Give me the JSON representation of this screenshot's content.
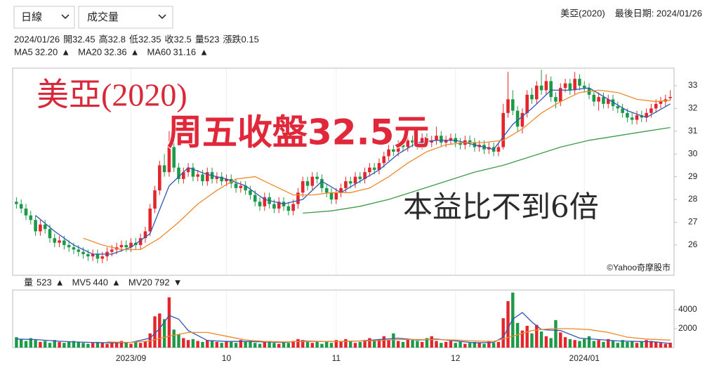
{
  "header": {
    "period": "日線",
    "indicator": "成交量",
    "stock": "美亞(2020)",
    "last_date": "最後日期: 2024/01/26"
  },
  "info": [
    "2024/01/26",
    "開32.45",
    "高32.8",
    "低32.35",
    "收32.5",
    "量523",
    "漲跌0.15"
  ],
  "chart_data": [
    {
      "type": "candlestick",
      "up_color": "#e4262c",
      "down_color": "#1b9a48",
      "open": [
        27.9,
        27.8,
        27.6,
        27.3,
        27.1,
        26.6,
        26.9,
        26.7,
        26.3,
        26.1,
        26.2,
        26.0,
        25.9,
        25.8,
        25.7,
        25.6,
        25.5,
        25.6,
        25.4,
        25.5,
        25.7,
        25.8,
        25.9,
        26.0,
        25.9,
        26.1,
        26.0,
        26.3,
        26.6,
        27.6,
        28.4,
        29.5,
        29.2,
        30.3,
        29.4,
        28.9,
        29.2,
        29.4,
        29.0,
        29.1,
        28.8,
        29.2,
        28.9,
        29.0,
        28.8,
        28.9,
        28.7,
        28.5,
        28.6,
        28.4,
        28.2,
        27.9,
        27.7,
        28.1,
        27.8,
        27.6,
        27.9,
        27.7,
        27.5,
        27.8,
        28.3,
        28.8,
        28.6,
        29.0,
        28.9,
        28.5,
        28.3,
        28.0,
        28.3,
        28.5,
        28.8,
        28.7,
        29.0,
        28.9,
        29.2,
        29.4,
        29.3,
        29.6,
        29.9,
        30.2,
        30.1,
        30.4,
        30.3,
        30.6,
        30.5,
        30.4,
        30.7,
        30.5,
        30.6,
        30.8,
        30.5,
        30.6,
        30.7,
        30.5,
        30.4,
        30.6,
        30.5,
        30.3,
        30.4,
        30.2,
        30.3,
        30.1,
        30.3,
        31.8,
        32.4,
        31.9,
        31.2,
        31.8,
        32.6,
        32.4,
        33.0,
        32.8,
        33.2,
        32.5,
        32.3,
        32.9,
        33.1,
        32.8,
        33.3,
        33.0,
        32.9,
        32.6,
        32.3,
        32.5,
        32.2,
        32.4,
        32.1,
        32.0,
        31.8,
        31.6,
        31.5,
        31.7,
        31.6,
        31.8,
        32.0,
        32.2,
        32.3,
        32.45
      ],
      "high": [
        28.1,
        28.0,
        27.8,
        27.5,
        27.3,
        27.1,
        27.1,
        26.9,
        26.5,
        26.4,
        26.4,
        26.2,
        26.1,
        26.0,
        25.9,
        25.8,
        25.8,
        25.8,
        25.7,
        25.9,
        26.0,
        26.1,
        26.2,
        26.2,
        26.3,
        26.3,
        26.5,
        26.8,
        27.8,
        28.6,
        29.7,
        30.0,
        31.0,
        30.5,
        29.6,
        29.4,
        29.6,
        29.6,
        29.3,
        29.3,
        29.4,
        29.4,
        29.2,
        29.2,
        29.1,
        29.1,
        28.9,
        28.8,
        28.8,
        28.6,
        28.4,
        28.1,
        28.3,
        28.3,
        28.0,
        28.1,
        28.1,
        27.9,
        28.0,
        28.5,
        29.0,
        29.0,
        29.2,
        29.2,
        29.1,
        28.7,
        28.5,
        28.5,
        28.7,
        29.0,
        29.0,
        29.2,
        29.2,
        29.4,
        29.6,
        29.6,
        29.8,
        30.1,
        30.4,
        30.4,
        30.6,
        30.6,
        30.8,
        30.8,
        30.7,
        30.9,
        30.9,
        30.8,
        31.2,
        31.0,
        30.8,
        30.9,
        30.9,
        30.7,
        30.8,
        30.8,
        30.7,
        30.6,
        30.6,
        30.5,
        30.5,
        30.5,
        32.2,
        33.6,
        32.8,
        32.1,
        32.0,
        32.8,
        32.9,
        33.2,
        33.7,
        33.5,
        33.4,
        32.7,
        33.1,
        33.3,
        33.3,
        33.6,
        33.5,
        33.2,
        33.1,
        32.8,
        32.7,
        32.7,
        32.6,
        32.6,
        32.3,
        32.2,
        32.0,
        31.8,
        31.9,
        31.9,
        32.0,
        32.2,
        32.4,
        32.5,
        32.6,
        32.8
      ],
      "low": [
        27.6,
        27.4,
        27.1,
        26.9,
        26.4,
        26.4,
        26.5,
        26.1,
        25.9,
        25.9,
        25.8,
        25.7,
        25.6,
        25.5,
        25.4,
        25.3,
        25.3,
        25.2,
        25.2,
        25.3,
        25.5,
        25.6,
        25.7,
        25.7,
        25.7,
        25.8,
        25.8,
        26.1,
        26.4,
        27.4,
        28.2,
        29.0,
        29.0,
        29.2,
        28.7,
        28.7,
        29.0,
        28.8,
        28.8,
        28.6,
        28.6,
        28.7,
        28.7,
        28.6,
        28.6,
        28.5,
        28.3,
        28.3,
        28.2,
        28.0,
        27.7,
        27.5,
        27.5,
        27.6,
        27.4,
        27.4,
        27.5,
        27.3,
        27.3,
        27.6,
        28.1,
        28.4,
        28.4,
        28.7,
        28.3,
        28.1,
        27.8,
        27.8,
        28.1,
        28.3,
        28.5,
        28.5,
        28.7,
        28.7,
        29.0,
        29.1,
        29.1,
        29.4,
        29.7,
        29.9,
        29.9,
        30.1,
        30.1,
        30.3,
        30.2,
        30.2,
        30.3,
        30.3,
        30.4,
        30.3,
        30.3,
        30.4,
        30.3,
        30.2,
        30.2,
        30.3,
        30.1,
        30.1,
        30.0,
        30.0,
        29.9,
        29.9,
        30.2,
        31.6,
        31.7,
        31.0,
        30.9,
        31.6,
        32.2,
        32.2,
        32.6,
        32.6,
        32.3,
        32.0,
        32.1,
        32.7,
        32.6,
        32.6,
        32.8,
        32.7,
        32.4,
        32.1,
        31.9,
        32.0,
        32.0,
        31.9,
        31.8,
        31.6,
        31.4,
        31.3,
        31.3,
        31.4,
        31.4,
        31.6,
        31.8,
        32.0,
        32.1,
        32.35
      ],
      "close": [
        27.8,
        27.6,
        27.3,
        27.1,
        26.6,
        26.9,
        26.7,
        26.3,
        26.1,
        26.2,
        26.0,
        25.9,
        25.8,
        25.7,
        25.6,
        25.5,
        25.6,
        25.4,
        25.5,
        25.7,
        25.8,
        25.9,
        26.0,
        25.9,
        26.1,
        26.0,
        26.3,
        26.6,
        27.6,
        28.4,
        29.5,
        29.2,
        30.3,
        29.4,
        28.9,
        29.2,
        29.4,
        29.0,
        29.1,
        28.8,
        29.2,
        28.9,
        29.0,
        28.8,
        28.9,
        28.7,
        28.5,
        28.6,
        28.4,
        28.2,
        27.9,
        27.7,
        28.1,
        27.8,
        27.6,
        27.9,
        27.7,
        27.5,
        27.8,
        28.3,
        28.8,
        28.6,
        29.0,
        28.9,
        28.5,
        28.3,
        28.0,
        28.3,
        28.5,
        28.8,
        28.7,
        29.0,
        28.9,
        29.2,
        29.4,
        29.3,
        29.6,
        29.9,
        30.2,
        30.1,
        30.4,
        30.3,
        30.6,
        30.5,
        30.4,
        30.7,
        30.5,
        30.6,
        30.8,
        30.5,
        30.6,
        30.7,
        30.5,
        30.4,
        30.6,
        30.5,
        30.3,
        30.4,
        30.2,
        30.3,
        30.1,
        30.3,
        31.8,
        32.4,
        31.9,
        31.2,
        31.8,
        32.6,
        32.4,
        33.0,
        32.8,
        33.2,
        32.5,
        32.3,
        32.9,
        33.1,
        32.8,
        33.3,
        33.0,
        32.9,
        32.6,
        32.3,
        32.5,
        32.2,
        32.4,
        32.1,
        32.0,
        31.8,
        31.6,
        31.5,
        31.7,
        31.6,
        31.8,
        32.0,
        32.2,
        32.3,
        32.4,
        32.5
      ],
      "xlim": [
        -0.5,
        137.5
      ],
      "ylim": [
        24.67,
        33.77
      ],
      "yticks": [
        26,
        27,
        28,
        29,
        30,
        31,
        32,
        33
      ],
      "series": [
        {
          "name": "MA5",
          "color": "#2f57b5",
          "legend_value": "32.20",
          "legend_mark": "▲",
          "legend_mark_color": "#e4262c",
          "x": [
            4,
            8,
            12,
            16,
            20,
            24,
            28,
            32,
            36,
            40,
            44,
            48,
            52,
            56,
            60,
            64,
            68,
            72,
            76,
            80,
            84,
            88,
            92,
            96,
            100,
            104,
            108,
            112,
            116,
            120,
            124,
            128,
            132,
            137
          ],
          "values": [
            27.3,
            26.6,
            26.0,
            25.6,
            25.6,
            25.9,
            26.5,
            28.6,
            29.4,
            29.1,
            28.9,
            28.6,
            28.0,
            27.8,
            28.0,
            28.8,
            28.3,
            28.8,
            29.3,
            30.0,
            30.5,
            30.6,
            30.6,
            30.4,
            30.2,
            31.3,
            32.0,
            32.8,
            32.8,
            32.9,
            32.4,
            31.9,
            31.6,
            32.2
          ]
        },
        {
          "name": "MA20",
          "color": "#f0882a",
          "legend_value": "32.36",
          "legend_mark": "▲",
          "legend_mark_color": "#e4262c",
          "x": [
            14,
            18,
            22,
            26,
            30,
            34,
            38,
            42,
            46,
            50,
            54,
            58,
            62,
            66,
            70,
            74,
            78,
            82,
            86,
            90,
            94,
            98,
            102,
            106,
            110,
            114,
            118,
            122,
            126,
            130,
            134,
            137
          ],
          "values": [
            26.3,
            26.0,
            25.8,
            25.8,
            26.3,
            27.0,
            27.8,
            28.4,
            28.9,
            29.0,
            28.6,
            28.2,
            28.2,
            28.3,
            28.3,
            28.5,
            29.0,
            29.6,
            30.1,
            30.4,
            30.5,
            30.5,
            30.6,
            31.1,
            31.8,
            32.3,
            32.7,
            32.8,
            32.7,
            32.4,
            32.3,
            32.36
          ]
        },
        {
          "name": "MA60",
          "color": "#3d9a48",
          "legend_value": "31.16",
          "legend_mark": "▲",
          "legend_mark_color": "#e4262c",
          "x": [
            60,
            66,
            72,
            78,
            84,
            90,
            96,
            102,
            108,
            114,
            120,
            126,
            132,
            137
          ],
          "values": [
            27.4,
            27.5,
            27.7,
            28.0,
            28.4,
            28.8,
            29.2,
            29.5,
            29.9,
            30.3,
            30.6,
            30.8,
            31.0,
            31.16
          ]
        }
      ],
      "annotations": [
        "美亞(2020)",
        "周五收盤32.5元",
        "本益比不到6倍"
      ],
      "watermark": "©Yahoo奇摩股市"
    },
    {
      "type": "bar",
      "legend_name": "量",
      "legend_value": "523",
      "legend_mark": "▲",
      "legend_mark_color": "#e4262c",
      "values": [
        1100,
        900,
        700,
        1000,
        800,
        600,
        700,
        500,
        800,
        600,
        500,
        600,
        700,
        600,
        500,
        400,
        500,
        600,
        500,
        400,
        600,
        500,
        700,
        500,
        400,
        600,
        500,
        700,
        1500,
        3300,
        3600,
        3000,
        5300,
        1900,
        1400,
        1000,
        800,
        900,
        700,
        600,
        800,
        700,
        600,
        500,
        700,
        600,
        500,
        800,
        600,
        700,
        500,
        400,
        600,
        700,
        500,
        400,
        600,
        500,
        700,
        900,
        800,
        600,
        500,
        700,
        400,
        600,
        500,
        800,
        600,
        900,
        700,
        500,
        600,
        800,
        1000,
        700,
        900,
        1200,
        800,
        1500,
        700,
        600,
        900,
        800,
        700,
        600,
        1000,
        1200,
        700,
        500,
        600,
        700,
        500,
        600,
        400,
        500,
        600,
        500,
        400,
        700,
        500,
        600,
        3100,
        4900,
        5800,
        2600,
        1800,
        2300,
        1500,
        2400,
        1700,
        1200,
        1000,
        2900,
        1600,
        1100,
        900,
        800,
        700,
        900,
        1200,
        700,
        800,
        600,
        900,
        700,
        500,
        800,
        600,
        700,
        500,
        600,
        800,
        700,
        600,
        500,
        400,
        523
      ],
      "xlim": [
        -0.5,
        137.5
      ],
      "ylim": [
        0,
        6070
      ],
      "yticks": [
        2000,
        4000
      ],
      "ytick_color": "#e4262c",
      "xticks": [
        {
          "value": 24,
          "label": "2023/09"
        },
        {
          "value": 44,
          "label": "10"
        },
        {
          "value": 67,
          "label": "11"
        },
        {
          "value": 92,
          "label": "12"
        },
        {
          "value": 119,
          "label": "2024/01"
        }
      ],
      "series": [
        {
          "name": "MV5",
          "color": "#2f57b5",
          "legend_value": "440",
          "legend_mark": "▲",
          "legend_mark_color": "#e4262c",
          "x": [
            0,
            4,
            8,
            12,
            16,
            20,
            24,
            28,
            30,
            32,
            34,
            36,
            40,
            44,
            48,
            52,
            56,
            60,
            64,
            68,
            72,
            76,
            80,
            84,
            88,
            92,
            96,
            100,
            102,
            104,
            106,
            108,
            110,
            114,
            118,
            122,
            126,
            130,
            134,
            137
          ],
          "values": [
            900,
            850,
            700,
            600,
            550,
            500,
            550,
            1000,
            2000,
            3400,
            3000,
            1800,
            750,
            650,
            650,
            600,
            550,
            700,
            650,
            650,
            700,
            850,
            1000,
            800,
            900,
            700,
            500,
            550,
            1100,
            3000,
            3700,
            2700,
            1900,
            1800,
            1000,
            850,
            700,
            650,
            600,
            440
          ]
        },
        {
          "name": "MV20",
          "color": "#f0882a",
          "legend_value": "792",
          "legend_mark": "▼",
          "legend_mark_color": "#1b9a48",
          "x": [
            19,
            24,
            28,
            32,
            36,
            40,
            44,
            48,
            52,
            56,
            60,
            64,
            68,
            72,
            76,
            80,
            84,
            88,
            92,
            96,
            100,
            104,
            108,
            112,
            116,
            120,
            124,
            128,
            132,
            137
          ],
          "values": [
            600,
            550,
            700,
            1200,
            1600,
            1600,
            1200,
            800,
            650,
            600,
            650,
            650,
            650,
            700,
            750,
            850,
            850,
            850,
            800,
            700,
            650,
            1200,
            1800,
            2000,
            2000,
            1900,
            1600,
            1100,
            900,
            792
          ]
        }
      ]
    }
  ]
}
